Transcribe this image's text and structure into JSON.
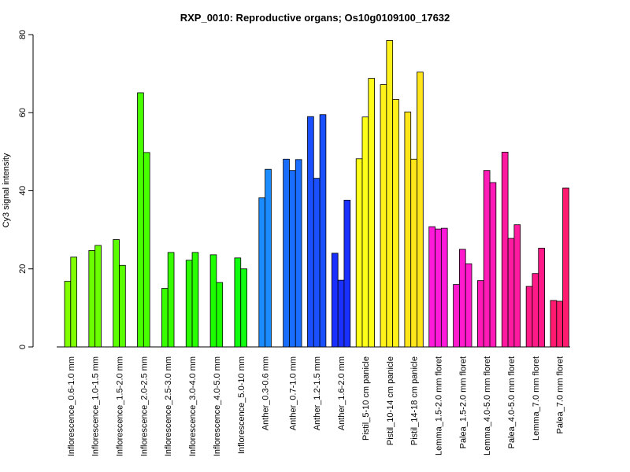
{
  "chart_data": {
    "type": "bar",
    "title": "RXP_0010: Reproductive organs; Os10g0109100_17632",
    "xlabel": "",
    "ylabel": "Cy3 signal intensity",
    "ylim": [
      0,
      80
    ],
    "yticks": [
      0,
      20,
      40,
      60,
      80
    ],
    "grid": false,
    "legend": "none",
    "groups": [
      {
        "label": "Inflorescence_0.6-1.0 mm",
        "color": "#7fff00",
        "values": [
          16.8,
          23.0
        ]
      },
      {
        "label": "Inflorescence_1.0-1.5 mm",
        "color": "#6cff00",
        "values": [
          24.7,
          26.0
        ]
      },
      {
        "label": "Inflorescence_1.5-2.0 mm",
        "color": "#5aff00",
        "values": [
          27.5,
          20.9
        ]
      },
      {
        "label": "Inflorescence_2.0-2.5 mm",
        "color": "#48ff00",
        "values": [
          65.1,
          49.8
        ]
      },
      {
        "label": "Inflorescence_2.5-3.0 mm",
        "color": "#38ff00",
        "values": [
          15.0,
          24.2
        ]
      },
      {
        "label": "Inflorescence_3.0-4.0 mm",
        "color": "#2aff00",
        "values": [
          22.2,
          24.2
        ]
      },
      {
        "label": "Inflorescence_4.0-5.0 mm",
        "color": "#1cff00",
        "values": [
          23.6,
          16.5
        ]
      },
      {
        "label": "Inflorescence_5.0-10 mm",
        "color": "#10ff10",
        "values": [
          22.8,
          20.0
        ]
      },
      {
        "label": "Anther_0.3-0.6 mm",
        "color": "#1a8cff",
        "values": [
          38.2,
          45.5
        ]
      },
      {
        "label": "Anther_0.7-1.0 mm",
        "color": "#1a6eff",
        "values": [
          48.1,
          45.2,
          48.0
        ]
      },
      {
        "label": "Anther_1.2-1.5 mm",
        "color": "#1a50ff",
        "values": [
          59.0,
          43.2,
          59.5
        ]
      },
      {
        "label": "Anther_1.6-2.0 mm",
        "color": "#1a30ff",
        "values": [
          24.0,
          17.1,
          37.6
        ]
      },
      {
        "label": "Pistil_5-10 cm panicle",
        "color": "#ffff1a",
        "values": [
          48.2,
          58.9,
          68.8
        ]
      },
      {
        "label": "Pistil_10-14 cm panicle",
        "color": "#fff21a",
        "values": [
          67.2,
          78.5,
          63.4
        ]
      },
      {
        "label": "Pistil_14-18 cm panicle",
        "color": "#ffe51a",
        "values": [
          60.2,
          48.1,
          70.4
        ]
      },
      {
        "label": "Lemma_1.5-2.0 mm floret",
        "color": "#ff1ad9",
        "values": [
          30.8,
          30.2,
          30.4
        ]
      },
      {
        "label": "Palea_1.5-2.0 mm floret",
        "color": "#ff1acc",
        "values": [
          16.0,
          25.0,
          21.3
        ]
      },
      {
        "label": "Lemma_4.0-5.0 mm floret",
        "color": "#ff1ab8",
        "values": [
          17.0,
          45.2,
          42.1
        ]
      },
      {
        "label": "Palea_4.0-5.0 mm floret",
        "color": "#ff1aa0",
        "values": [
          49.9,
          27.8,
          31.3
        ]
      },
      {
        "label": "Lemma_7.0 mm floret",
        "color": "#ff1a88",
        "values": [
          15.5,
          18.8,
          25.3
        ]
      },
      {
        "label": "Palea_7.0 mm floret",
        "color": "#ff1a70",
        "values": [
          11.9,
          11.7,
          40.7
        ]
      }
    ]
  }
}
